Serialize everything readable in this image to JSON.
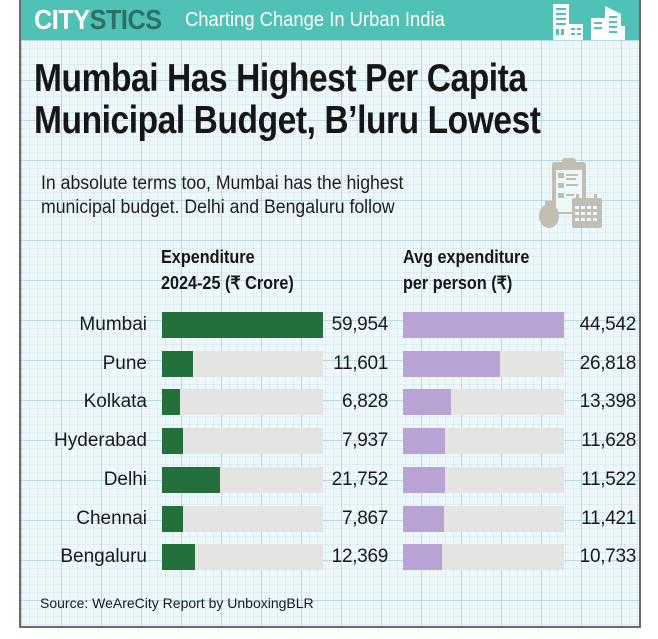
{
  "header": {
    "brand_part1": "CITY",
    "brand_part2": "STICS",
    "tagline": "Charting Change In Urban India"
  },
  "title_line1": "Mumbai Has Highest Per Capita",
  "title_line2": "Municipal Budget, B’luru Lowest",
  "subtitle_line1": "In absolute terms too, Mumbai has the highest",
  "subtitle_line2": "municipal budget. Delhi and Bengaluru follow",
  "icons": {
    "header": "city-skyline-icon",
    "budget": "clipboard-moneybag-calendar-icon"
  },
  "colors": {
    "header_bg": "#4fc1b5",
    "brand_dark": "#2f6f6a",
    "expenditure_bar": "#23703d",
    "per_person_bar": "#b9a2d4",
    "track": "#e4e4e2"
  },
  "source": "Source: WeAreCity Report by UnboxingBLR",
  "chart_data": {
    "type": "bar",
    "orientation": "horizontal",
    "title": "Mumbai Has Highest Per Capita Municipal Budget, B’luru Lowest",
    "categories": [
      "Mumbai",
      "Pune",
      "Kolkata",
      "Hyderabad",
      "Delhi",
      "Chennai",
      "Bengaluru"
    ],
    "series": [
      {
        "name": "Expenditure 2024-25 (₹ Crore)",
        "header_line1": "Expenditure",
        "header_line2": "2024-25 (₹ Crore)",
        "values": [
          59954,
          11601,
          6828,
          7937,
          21752,
          7867,
          12369
        ],
        "labels": [
          "59,954",
          "11,601",
          "6,828",
          "7,937",
          "21,752",
          "7,867",
          "12,369"
        ],
        "max": 59954
      },
      {
        "name": "Avg expenditure per person (₹)",
        "header_line1": "Avg expenditure",
        "header_line2": "per person (₹)",
        "values": [
          44542,
          26818,
          13398,
          11628,
          11522,
          11421,
          10733
        ],
        "labels": [
          "44,542",
          "26,818",
          "13,398",
          "11,628",
          "11,522",
          "11,421",
          "10,733"
        ],
        "max": 44542
      }
    ],
    "xlabel": "",
    "ylabel": "",
    "grid": false,
    "legend": "none"
  }
}
